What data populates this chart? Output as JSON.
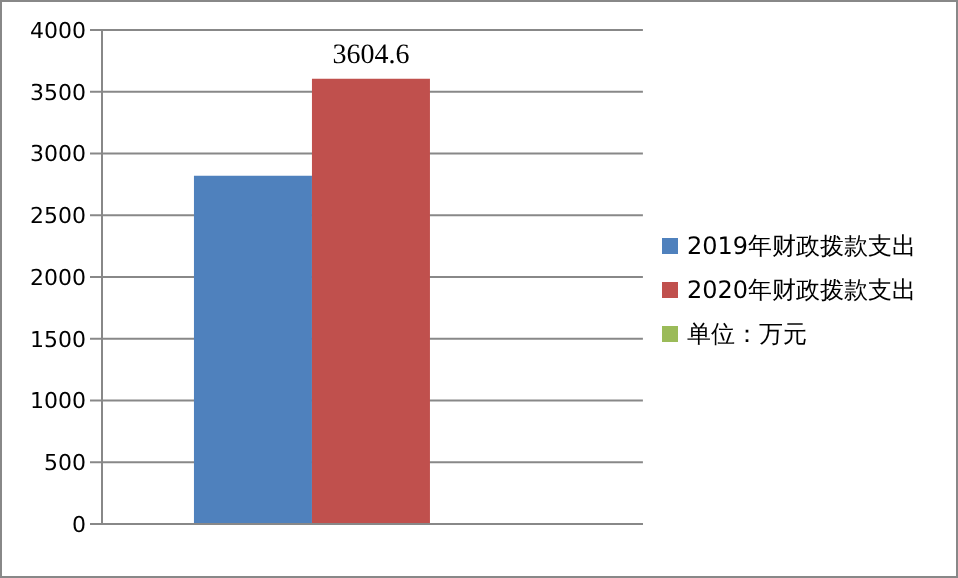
{
  "chart_data": {
    "type": "bar",
    "categories": [
      null
    ],
    "series": [
      {
        "name": "2019年财政拨款支出",
        "color": "#4f81bd",
        "values": [
          2820
        ]
      },
      {
        "name": "2020年财政拨款支出",
        "color": "#c0504d",
        "values": [
          3604.6
        ],
        "value_labels": [
          "3604.6"
        ]
      },
      {
        "name": "单位：万元",
        "color": "#9bbb59",
        "values": [
          null
        ]
      }
    ],
    "ylim": [
      0,
      4000
    ],
    "yticks": [
      0,
      500,
      1000,
      1500,
      2000,
      2500,
      3000,
      3500,
      4000
    ],
    "grid": "y",
    "legend": "right"
  }
}
